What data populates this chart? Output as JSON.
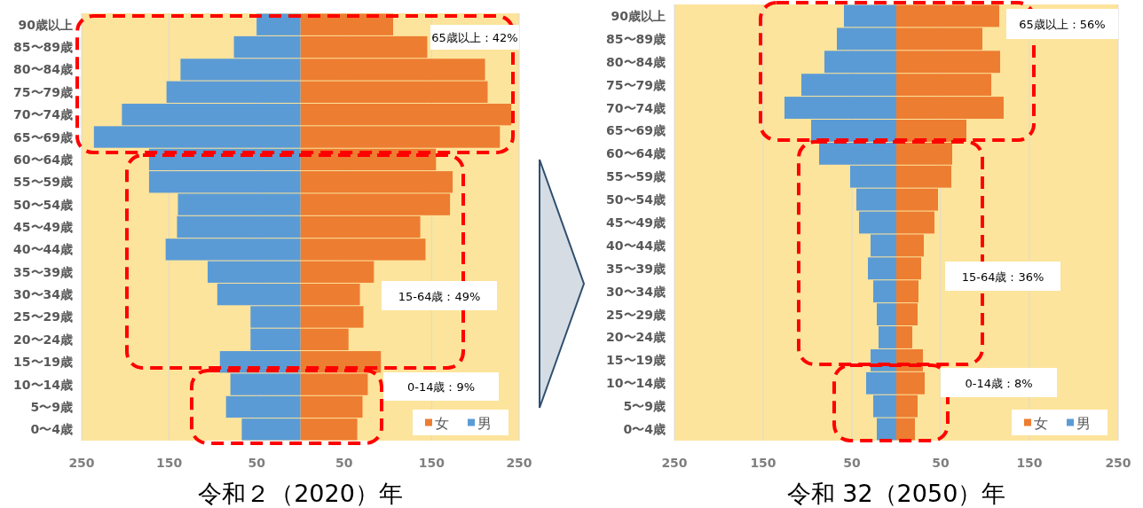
{
  "chart_data": [
    {
      "type": "bar",
      "orientation": "horizontal",
      "stacked": true,
      "xlabel": "令和２（2020）年",
      "categories": [
        "90歳以上",
        "85〜89歳",
        "80〜84歳",
        "75〜79歳",
        "70〜74歳",
        "65〜69歳",
        "60〜64歳",
        "55〜59歳",
        "50〜54歳",
        "45〜49歳",
        "40〜44歳",
        "35〜39歳",
        "30〜34歳",
        "25〜29歳",
        "20〜24歳",
        "15〜19歳",
        "10〜14歳",
        "5〜9歳",
        "0〜4歳"
      ],
      "series": [
        {
          "name": "女",
          "color": "#ed7d31",
          "values": [
            106,
            145,
            211,
            214,
            241,
            228,
            155,
            174,
            171,
            137,
            143,
            84,
            68,
            72,
            55,
            92,
            77,
            71,
            65
          ]
        },
        {
          "name": "男",
          "color": "#5b9bd5",
          "values": [
            -50,
            -76,
            -137,
            -153,
            -204,
            -236,
            -173,
            -173,
            -140,
            -141,
            -154,
            -106,
            -95,
            -57,
            -57,
            -92,
            -80,
            -85,
            -67
          ]
        }
      ],
      "xlim": [
        -250,
        250
      ],
      "xticks": [
        {
          "value": -250,
          "label": "250"
        },
        {
          "value": -150,
          "label": "150"
        },
        {
          "value": -50,
          "label": "50"
        },
        50,
        150,
        250
      ],
      "grid": "x",
      "legend": "bottom right",
      "annotations": [
        "65歳以上：42%",
        "15-64歳：49%",
        "0-14歳：9%"
      ]
    },
    {
      "type": "bar",
      "orientation": "horizontal",
      "stacked": true,
      "xlabel": "令和 32（2050）年",
      "categories": [
        "90歳以上",
        "85〜89歳",
        "80〜84歳",
        "75〜79歳",
        "70〜74歳",
        "65〜69歳",
        "60〜64歳",
        "55〜59歳",
        "50〜54歳",
        "45〜49歳",
        "40〜44歳",
        "35〜39歳",
        "30〜34歳",
        "25〜29歳",
        "20〜24歳",
        "15〜19歳",
        "10〜14歳",
        "5〜9歳",
        "0〜4歳"
      ],
      "series": [
        {
          "name": "女",
          "color": "#ed7d31",
          "values": [
            116,
            97,
            117,
            107,
            121,
            79,
            63,
            62,
            47,
            43,
            31,
            28,
            25,
            24,
            18,
            30,
            32,
            24,
            21
          ]
        },
        {
          "name": "男",
          "color": "#5b9bd5",
          "values": [
            -59,
            -67,
            -81,
            -107,
            -126,
            -96,
            -87,
            -52,
            -45,
            -42,
            -29,
            -32,
            -26,
            -22,
            -20,
            -29,
            -34,
            -26,
            -22
          ]
        }
      ],
      "xlim": [
        -250,
        250
      ],
      "xticks": [
        {
          "value": -250,
          "label": "250"
        },
        {
          "value": -150,
          "label": "150"
        },
        {
          "value": -50,
          "label": "50"
        },
        50,
        150,
        250
      ],
      "grid": "x",
      "legend": "bottom right",
      "annotations": [
        "65歳以上：56%",
        "15-64歳：36%",
        "0-14歳：8%"
      ]
    }
  ]
}
